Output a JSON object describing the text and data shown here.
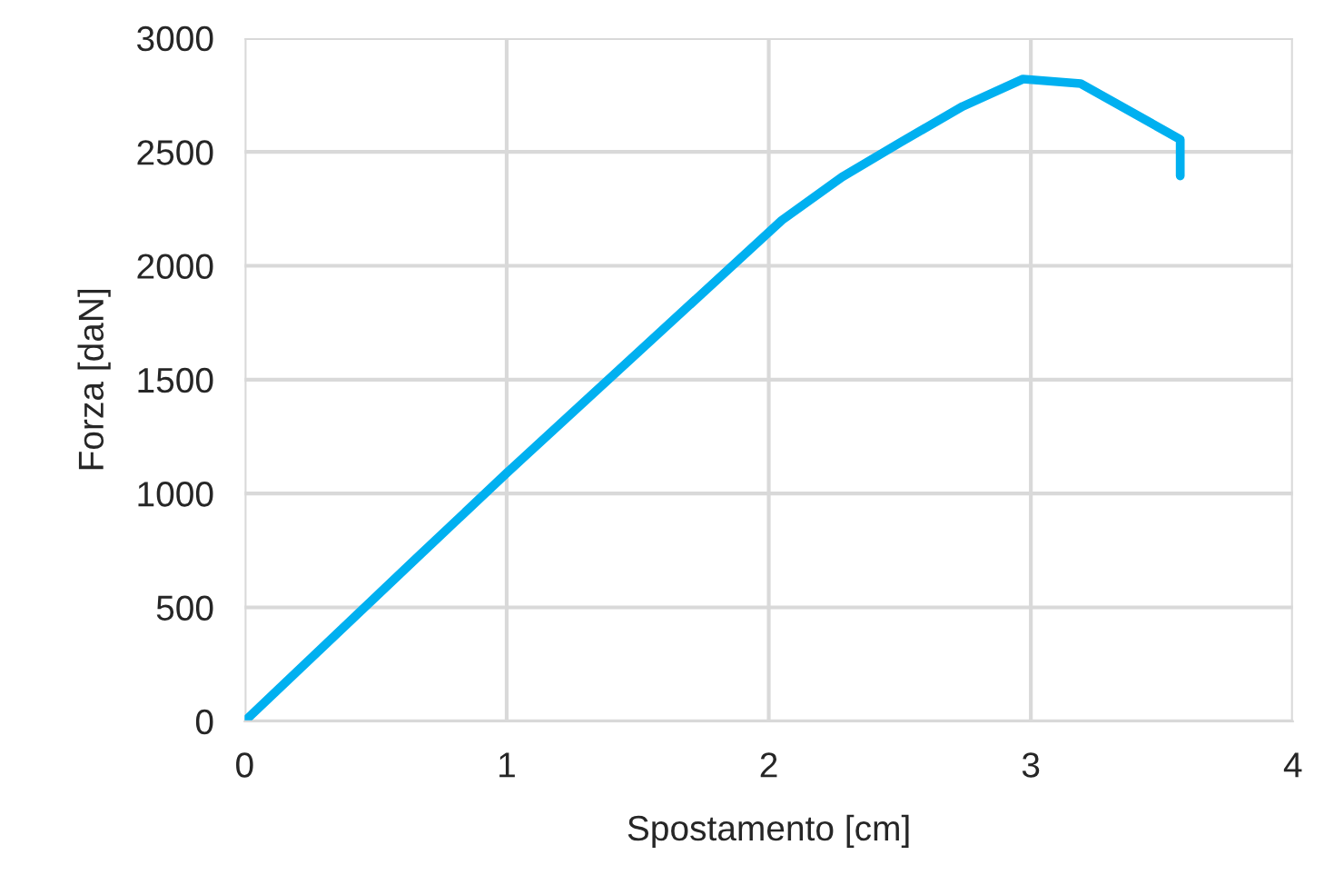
{
  "chart_data": {
    "type": "line",
    "xlabel": "Spostamento [cm]",
    "ylabel": "Forza [daN]",
    "xlim": [
      0,
      4
    ],
    "xticks": [
      0,
      1,
      2,
      3,
      4
    ],
    "ylim": [
      0,
      3000
    ],
    "yticks": [
      0,
      500,
      1000,
      1500,
      2000,
      2500,
      3000
    ],
    "grid": true,
    "legend": false,
    "marker": "none",
    "line_style": "solid",
    "series": [
      {
        "color": "#00b0f0",
        "x": [
          0,
          0.65,
          1.0,
          2.05,
          2.28,
          2.5,
          2.74,
          2.97,
          3.19,
          3.57,
          3.57
        ],
        "values": [
          0,
          710,
          1090,
          2200,
          2390,
          2540,
          2700,
          2820,
          2800,
          2555,
          2395
        ]
      }
    ]
  }
}
